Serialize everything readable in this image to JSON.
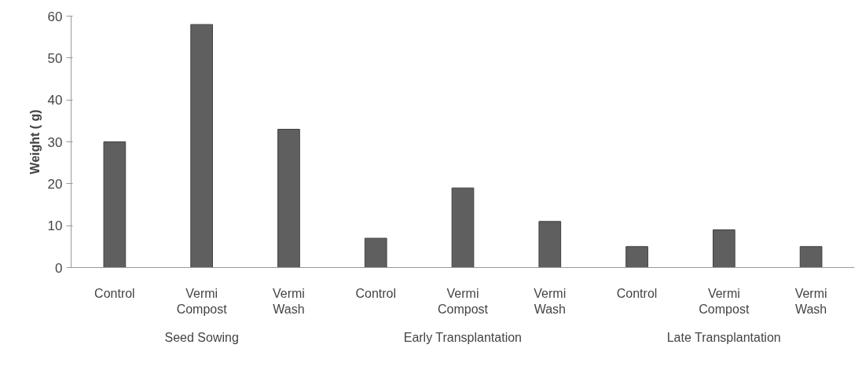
{
  "chart_data": {
    "type": "bar",
    "ylabel": "Weight ( g)",
    "categories": [
      "Control",
      "Vermi\nCompost",
      "Vermi\nWash",
      "Control",
      "Vermi\nCompost",
      "Vermi\nWash",
      "Control",
      "Vermi\nCompost",
      "Vermi\nWash"
    ],
    "values": [
      30,
      58,
      33,
      7,
      19,
      11,
      5,
      9,
      5
    ],
    "color": "#5f5f5f",
    "annotations": [
      "Seed Sowing",
      "Early Transplantation",
      "Late Transplantation"
    ],
    "ylim": [
      0,
      60
    ],
    "yticks": [
      0,
      10,
      20,
      30,
      40,
      50,
      60
    ],
    "grid": false
  }
}
